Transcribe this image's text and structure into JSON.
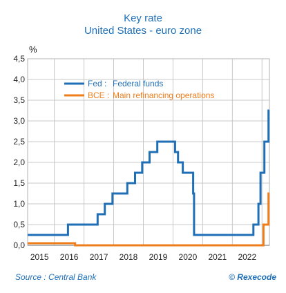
{
  "header": {
    "title": "Key rate",
    "subtitle": "United States - euro zone"
  },
  "footer": {
    "source": "Source : Central Bank",
    "copyright": "© Rexecode"
  },
  "chart_data": {
    "type": "line",
    "title": "Key rate",
    "subtitle": "United States - euro zone",
    "ylabel": "%",
    "xlabel": "",
    "ylim": [
      0,
      4.5
    ],
    "xlim": [
      2014.6,
      2022.75
    ],
    "y_ticks": [
      "0,0",
      "0,5",
      "1,0",
      "1,5",
      "2,0",
      "2,5",
      "3,0",
      "3,5",
      "4,0",
      "4,5"
    ],
    "x_ticks": [
      "2015",
      "2016",
      "2017",
      "2018",
      "2019",
      "2020",
      "2021",
      "2022"
    ],
    "grid": true,
    "legend_position": "top-left",
    "colors": {
      "fed": "#1f6fb7",
      "bce": "#ee7d1a",
      "grid": "#c8c8c8",
      "text": "#1f6fb7"
    },
    "series": [
      {
        "key": "fed",
        "prefix": "Fed :",
        "name": "Federal funds",
        "color": "#1f6fb7",
        "x": [
          2014.6,
          2015.96,
          2015.96,
          2016.96,
          2016.96,
          2017.2,
          2017.2,
          2017.46,
          2017.46,
          2017.96,
          2017.96,
          2018.22,
          2018.22,
          2018.46,
          2018.46,
          2018.71,
          2018.71,
          2018.97,
          2018.97,
          2019.57,
          2019.57,
          2019.67,
          2019.67,
          2019.83,
          2019.83,
          2020.18,
          2020.18,
          2020.21,
          2020.21,
          2022.21,
          2022.21,
          2022.38,
          2022.38,
          2022.45,
          2022.45,
          2022.58,
          2022.58,
          2022.72,
          2022.72,
          2022.75
        ],
        "y": [
          0.25,
          0.25,
          0.5,
          0.5,
          0.75,
          0.75,
          1.0,
          1.0,
          1.25,
          1.25,
          1.5,
          1.5,
          1.75,
          1.75,
          2.0,
          2.0,
          2.25,
          2.25,
          2.5,
          2.5,
          2.25,
          2.25,
          2.0,
          2.0,
          1.75,
          1.75,
          1.25,
          1.25,
          0.25,
          0.25,
          0.5,
          0.5,
          1.0,
          1.0,
          1.75,
          1.75,
          2.5,
          2.5,
          3.25,
          3.25
        ]
      },
      {
        "key": "bce",
        "prefix": "BCE :",
        "name": "Main refinancing operations",
        "color": "#ee7d1a",
        "x": [
          2014.6,
          2016.2,
          2016.2,
          2022.55,
          2022.55,
          2022.72,
          2022.72,
          2022.75
        ],
        "y": [
          0.05,
          0.05,
          0.0,
          0.0,
          0.5,
          0.5,
          1.25,
          1.25
        ]
      }
    ]
  }
}
